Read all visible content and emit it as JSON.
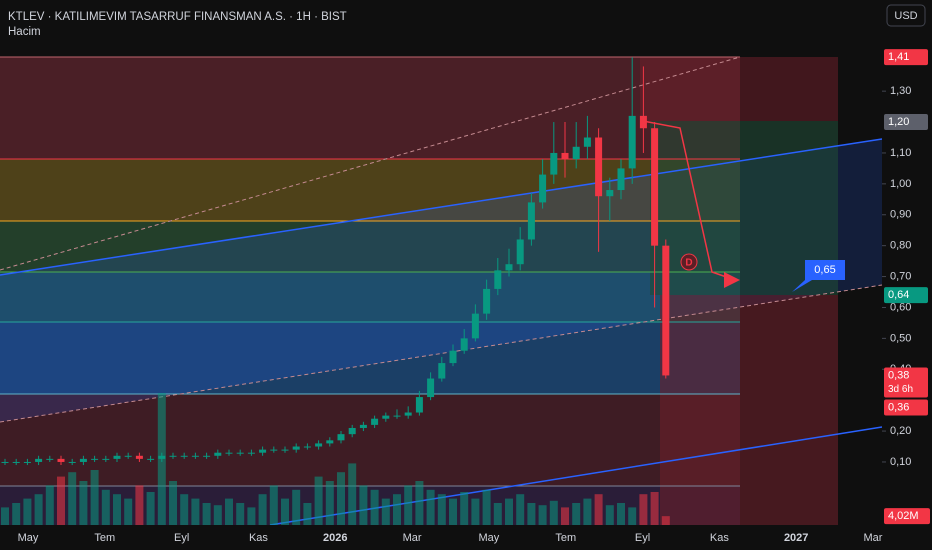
{
  "header": {
    "title": "KTLEV · KATILIMEVIM TASARRUF FINANSMAN A.S. · 1H · BIST",
    "volume_title": "Hacim",
    "currency": "USD"
  },
  "chart_data": {
    "type": "candlestick",
    "open": [
      0.1,
      0.1,
      0.1,
      0.1,
      0.11,
      0.11,
      0.1,
      0.1,
      0.11,
      0.11,
      0.11,
      0.12,
      0.12,
      0.11,
      0.11,
      0.12,
      0.12,
      0.12,
      0.12,
      0.12,
      0.13,
      0.13,
      0.13,
      0.13,
      0.14,
      0.14,
      0.14,
      0.15,
      0.15,
      0.16,
      0.17,
      0.19,
      0.21,
      0.22,
      0.24,
      0.25,
      0.25,
      0.26,
      0.31,
      0.37,
      0.42,
      0.46,
      0.5,
      0.58,
      0.66,
      0.72,
      0.74,
      0.82,
      0.94,
      1.03,
      1.1,
      1.08,
      1.12,
      1.15,
      0.96,
      0.98,
      1.05,
      1.22,
      1.18,
      0.8
    ],
    "high": [
      0.11,
      0.11,
      0.11,
      0.12,
      0.12,
      0.12,
      0.11,
      0.12,
      0.12,
      0.12,
      0.13,
      0.13,
      0.13,
      0.12,
      0.13,
      0.13,
      0.13,
      0.13,
      0.13,
      0.14,
      0.14,
      0.14,
      0.14,
      0.15,
      0.15,
      0.15,
      0.16,
      0.16,
      0.17,
      0.18,
      0.2,
      0.22,
      0.23,
      0.25,
      0.26,
      0.27,
      0.28,
      0.33,
      0.39,
      0.44,
      0.48,
      0.53,
      0.61,
      0.69,
      0.76,
      0.79,
      0.86,
      0.97,
      1.08,
      1.2,
      1.2,
      1.2,
      1.22,
      1.18,
      1.02,
      1.08,
      1.41,
      1.38,
      1.2,
      0.82
    ],
    "low": [
      0.09,
      0.09,
      0.09,
      0.09,
      0.1,
      0.09,
      0.09,
      0.09,
      0.1,
      0.1,
      0.1,
      0.11,
      0.1,
      0.1,
      0.1,
      0.11,
      0.11,
      0.11,
      0.11,
      0.11,
      0.12,
      0.12,
      0.12,
      0.12,
      0.13,
      0.13,
      0.13,
      0.14,
      0.14,
      0.15,
      0.16,
      0.18,
      0.2,
      0.21,
      0.23,
      0.24,
      0.24,
      0.25,
      0.3,
      0.36,
      0.41,
      0.45,
      0.49,
      0.56,
      0.64,
      0.7,
      0.72,
      0.8,
      0.92,
      1.0,
      1.02,
      1.05,
      1.08,
      0.78,
      0.88,
      0.95,
      1.0,
      1.1,
      0.6,
      0.37
    ],
    "close": [
      0.1,
      0.1,
      0.1,
      0.11,
      0.11,
      0.1,
      0.1,
      0.11,
      0.11,
      0.11,
      0.12,
      0.12,
      0.11,
      0.11,
      0.12,
      0.12,
      0.12,
      0.12,
      0.12,
      0.13,
      0.13,
      0.13,
      0.13,
      0.14,
      0.14,
      0.14,
      0.15,
      0.15,
      0.16,
      0.17,
      0.19,
      0.21,
      0.22,
      0.24,
      0.25,
      0.25,
      0.26,
      0.31,
      0.37,
      0.42,
      0.46,
      0.5,
      0.58,
      0.66,
      0.72,
      0.74,
      0.82,
      0.94,
      1.03,
      1.1,
      1.08,
      1.12,
      1.15,
      0.96,
      0.98,
      1.05,
      1.22,
      1.18,
      0.8,
      0.38
    ],
    "volume": [
      8,
      10,
      12,
      14,
      18,
      22,
      24,
      20,
      25,
      16,
      14,
      12,
      18,
      15,
      60,
      20,
      14,
      12,
      10,
      9,
      12,
      10,
      8,
      14,
      18,
      12,
      16,
      10,
      22,
      20,
      24,
      28,
      18,
      16,
      12,
      14,
      18,
      20,
      16,
      14,
      12,
      15,
      12,
      16,
      10,
      12,
      14,
      10,
      9,
      11,
      8,
      10,
      12,
      14,
      9,
      10,
      8,
      14,
      15,
      4.02
    ],
    "up_color": "#089981",
    "down_color": "#f23645",
    "ylim": [
      -0.104,
      1.595
    ],
    "yticks": [
      {
        "value": 1.3,
        "label": "1,30"
      },
      {
        "value": 1.1,
        "label": "1,10"
      },
      {
        "value": 1.0,
        "label": "1,00"
      },
      {
        "value": 0.9,
        "label": "0,90"
      },
      {
        "value": 0.8,
        "label": "0,80"
      },
      {
        "value": 0.7,
        "label": "0,70"
      },
      {
        "value": 0.6,
        "label": "0,60"
      },
      {
        "value": 0.5,
        "label": "0,50"
      },
      {
        "value": 0.4,
        "label": "0,40"
      },
      {
        "value": 0.2,
        "label": "0,20"
      },
      {
        "value": 0.1,
        "label": "0,10"
      }
    ],
    "x_labels": [
      "May",
      "Tem",
      "Eyl",
      "Kas",
      "2026",
      "Mar",
      "May",
      "Tem",
      "Eyl",
      "Kas",
      "2027",
      "Mar"
    ],
    "price_labels": [
      {
        "value": 1.41,
        "label": "1,41",
        "color": "#f23645"
      },
      {
        "value": 1.2,
        "label": "1,20",
        "color": "#5d606b"
      },
      {
        "value": 0.64,
        "label": "0,64",
        "color": "#089981"
      },
      {
        "value": 0.38,
        "label": "0,38",
        "color": "#f23645"
      },
      {
        "value": 0.36,
        "label": "0,36",
        "color": "#f23645"
      }
    ],
    "countdown": "3d 6h",
    "last_volume": {
      "value": 4.02,
      "label": "4,02M"
    },
    "marker": "D",
    "target": {
      "value": 0.65,
      "label": "0,65"
    }
  }
}
